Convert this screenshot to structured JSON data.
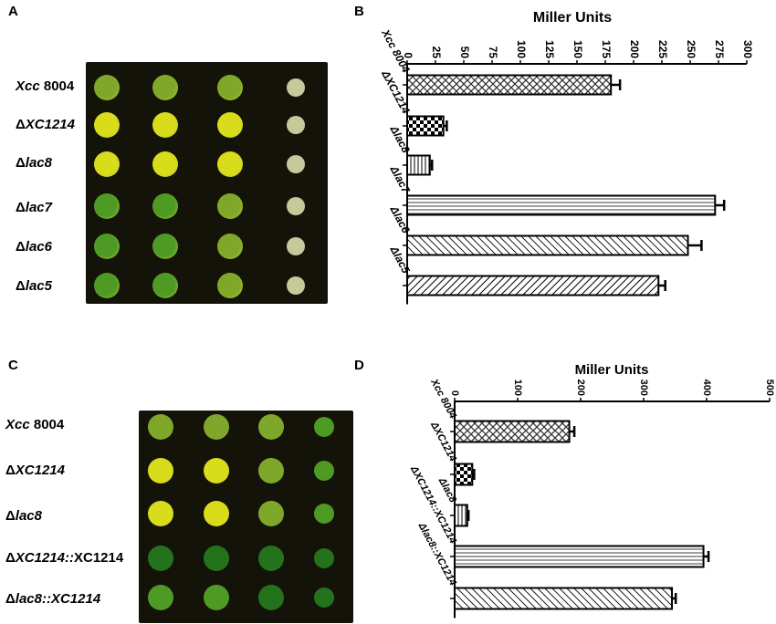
{
  "panels": {
    "a": {
      "letter": "A",
      "row_labels": [
        {
          "italic": "Xcc",
          "plain": " 8004"
        },
        {
          "prefix": "Δ",
          "italic": "XC1214"
        },
        {
          "prefix": "Δ",
          "italic": "lac8"
        },
        {
          "prefix": "Δ",
          "italic": "lac7"
        },
        {
          "prefix": "Δ",
          "italic": "lac6"
        },
        {
          "prefix": "Δ",
          "italic": "lac5"
        }
      ]
    },
    "c": {
      "letter": "C",
      "row_labels": [
        {
          "italic": "Xcc",
          "plain": " 8004"
        },
        {
          "prefix": "Δ",
          "italic": "XC1214"
        },
        {
          "prefix": "Δ",
          "italic": "lac8"
        },
        {
          "prefix": "Δ",
          "italic": "XC1214::",
          "plain": "XC1214"
        },
        {
          "prefix": "Δ",
          "italic": "lac8::XC1214"
        }
      ]
    },
    "b": {
      "letter": "B"
    },
    "d": {
      "letter": "D"
    }
  },
  "colors": {
    "plate": "#141309",
    "xcc_spot": "#7fa82a",
    "yellow_spot": "#d8dc1a",
    "green_spot": "#4f9a24",
    "dark_spot": "#23731c",
    "dilution_spot": "#c6c99a"
  },
  "chart_data": [
    {
      "type": "bar",
      "orientation": "horizontal",
      "title": "Miller Units",
      "categories": [
        "Xcc 8004",
        "ΔXC1214",
        "Δlac8",
        "Δlac7",
        "Δlac6",
        "Δlac5"
      ],
      "values": [
        180,
        32,
        20,
        272,
        248,
        222
      ],
      "errors": [
        8,
        3,
        2,
        8,
        12,
        6
      ],
      "xlim": [
        0,
        300
      ],
      "ticks": [
        "0",
        "25",
        "50",
        "75",
        "100",
        "125",
        "150",
        "175",
        "200",
        "225",
        "250",
        "275",
        "300"
      ],
      "patterns": [
        "crosshatch",
        "checker",
        "vertical",
        "horizontal",
        "diagonal-dense",
        "diagonal"
      ]
    },
    {
      "type": "bar",
      "orientation": "horizontal",
      "title": "Miller Units",
      "categories": [
        "Xcc 8004",
        "ΔXC1214",
        "Δlac8",
        "ΔXC1214::XC1214",
        "Δlac8::XC1214"
      ],
      "values": [
        182,
        28,
        20,
        395,
        345
      ],
      "errors": [
        8,
        3,
        2,
        8,
        6
      ],
      "xlim": [
        0,
        500
      ],
      "ticks": [
        "0",
        "100",
        "200",
        "300",
        "400",
        "500"
      ],
      "patterns": [
        "crosshatch",
        "checker",
        "vertical",
        "horizontal",
        "diagonal-dense"
      ]
    }
  ]
}
